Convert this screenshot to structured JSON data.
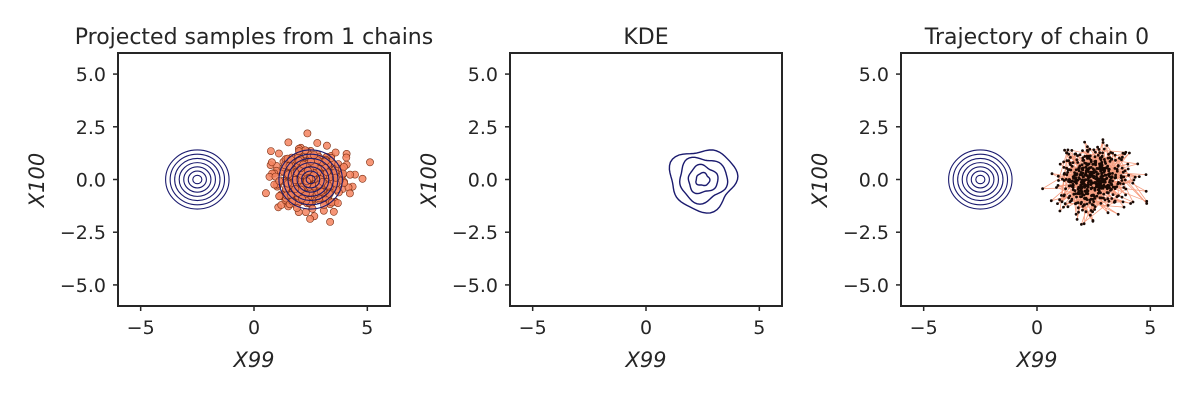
{
  "chart_data": [
    {
      "type": "scatter",
      "title": "Projected samples from 1 chains",
      "xlabel": "X99",
      "ylabel": "X100",
      "xlim": [
        -6.0,
        6.0
      ],
      "ylim": [
        -6.0,
        6.0
      ],
      "xticks": [
        -5,
        0,
        5
      ],
      "xtick_labels": [
        "−5",
        "0",
        "5"
      ],
      "yticks": [
        5.0,
        2.5,
        0.0,
        -2.5,
        -5.0
      ],
      "ytick_labels": [
        "5.0",
        "2.5",
        "0.0",
        "−2.5",
        "−5.0"
      ],
      "grid": false,
      "contours": [
        {
          "center": [
            -2.5,
            0.0
          ],
          "levels": 7,
          "max_radius": 1.4,
          "color": "#1a1a6e"
        },
        {
          "center": [
            2.5,
            0.0
          ],
          "levels": 7,
          "max_radius": 1.4,
          "color": "#1a1a6e"
        }
      ],
      "samples": {
        "count": 500,
        "center": [
          2.5,
          0.0
        ],
        "spread": 0.75,
        "color": "#f4845f",
        "edge_color": "#7a2e12"
      }
    },
    {
      "type": "heatmap",
      "title": "KDE",
      "xlabel": "X99",
      "ylabel": "X100",
      "xlim": [
        -6.0,
        6.0
      ],
      "ylim": [
        -6.0,
        6.0
      ],
      "xticks": [
        -5,
        0,
        5
      ],
      "xtick_labels": [
        "−5",
        "0",
        "5"
      ],
      "yticks": [
        5.0,
        2.5,
        0.0,
        -2.5,
        -5.0
      ],
      "ytick_labels": [
        "5.0",
        "2.5",
        "0.0",
        "−2.5",
        "−5.0"
      ],
      "grid": false,
      "kde_contours": {
        "center": [
          2.5,
          0.0
        ],
        "radii": [
          1.45,
          1.05,
          0.65,
          0.3
        ],
        "color": "#1a1a6e"
      }
    },
    {
      "type": "line",
      "title": "Trajectory of chain 0",
      "xlabel": "X99",
      "ylabel": "X100",
      "xlim": [
        -6.0,
        6.0
      ],
      "ylim": [
        -6.0,
        6.0
      ],
      "xticks": [
        -5,
        0,
        5
      ],
      "xtick_labels": [
        "−5",
        "0",
        "5"
      ],
      "yticks": [
        5.0,
        2.5,
        0.0,
        -2.5,
        -5.0
      ],
      "ytick_labels": [
        "5.0",
        "2.5",
        "0.0",
        "−2.5",
        "−5.0"
      ],
      "grid": false,
      "contours": [
        {
          "center": [
            -2.5,
            0.0
          ],
          "levels": 7,
          "max_radius": 1.4,
          "color": "#1a1a6e"
        }
      ],
      "trajectory": {
        "count": 500,
        "center": [
          2.5,
          0.0
        ],
        "spread": 0.75,
        "line_color": "#f4845f",
        "point_color": "#1a0a05"
      }
    }
  ]
}
